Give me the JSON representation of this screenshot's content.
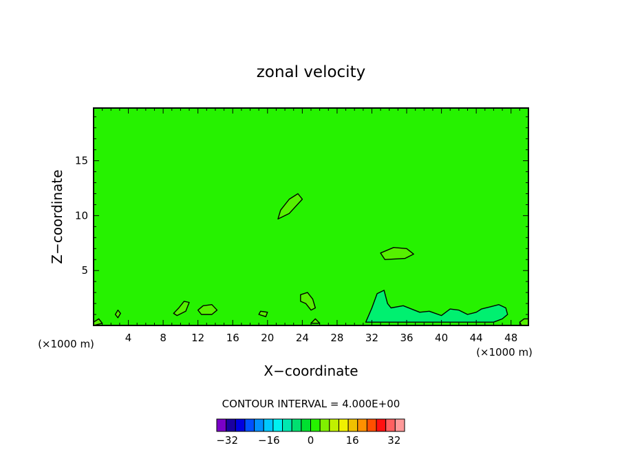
{
  "chart_data": {
    "type": "heatmap",
    "title": "zonal velocity",
    "xlabel": "X−coordinate",
    "ylabel": "Z−coordinate",
    "x_units_left": "(×1000 m)",
    "x_units_right": "(×1000 m)",
    "xlim": [
      0,
      50
    ],
    "ylim": [
      0,
      19.8
    ],
    "x_ticks": [
      4,
      8,
      12,
      16,
      20,
      24,
      28,
      32,
      36,
      40,
      44,
      48
    ],
    "y_ticks": [
      5,
      10,
      15
    ],
    "background_value": 0,
    "background_color": "#26f200",
    "contour_interval_text": "CONTOUR INTERVAL = 4.000E+00",
    "colorbar": {
      "ticks": [
        -32,
        -16,
        0,
        16,
        32
      ],
      "min": -36,
      "max": 36,
      "colors": [
        "#7a00c8",
        "#1a00a0",
        "#0000e0",
        "#0050ff",
        "#0090ff",
        "#00c8ff",
        "#00f0f0",
        "#00e8b0",
        "#00e070",
        "#00e030",
        "#26f200",
        "#80f000",
        "#c0f000",
        "#f0f000",
        "#f0c000",
        "#ff9000",
        "#ff5000",
        "#ff1010",
        "#ff6060",
        "#ff9a9a"
      ]
    },
    "features": [
      {
        "kind": "positive",
        "color": "#56f000",
        "points": [
          [
            21.5,
            10.5
          ],
          [
            22.5,
            11.5
          ],
          [
            23.5,
            12.0
          ],
          [
            24.0,
            11.5
          ],
          [
            22.5,
            10.2
          ],
          [
            21.2,
            9.7
          ]
        ]
      },
      {
        "kind": "positive",
        "color": "#56f000",
        "points": [
          [
            33.0,
            6.6
          ],
          [
            34.5,
            7.1
          ],
          [
            36.0,
            7.0
          ],
          [
            36.8,
            6.5
          ],
          [
            35.8,
            6.1
          ],
          [
            33.5,
            6.0
          ]
        ]
      },
      {
        "kind": "negative",
        "color": "#00f070",
        "points": [
          [
            31.3,
            0.3
          ],
          [
            32.0,
            1.6
          ],
          [
            32.6,
            2.9
          ],
          [
            33.4,
            3.2
          ],
          [
            33.8,
            2.0
          ],
          [
            34.2,
            1.6
          ],
          [
            35.6,
            1.8
          ],
          [
            37.5,
            1.2
          ],
          [
            38.6,
            1.3
          ],
          [
            40.0,
            0.9
          ],
          [
            41.0,
            1.5
          ],
          [
            42.0,
            1.4
          ],
          [
            43.0,
            1.0
          ],
          [
            44.0,
            1.2
          ],
          [
            44.6,
            1.5
          ],
          [
            45.6,
            1.7
          ],
          [
            46.6,
            1.9
          ],
          [
            47.4,
            1.6
          ],
          [
            47.6,
            1.0
          ],
          [
            47.0,
            0.6
          ],
          [
            46.0,
            0.3
          ]
        ]
      },
      {
        "kind": "positive",
        "color": "#56f000",
        "points": [
          [
            12.0,
            1.4
          ],
          [
            12.6,
            1.8
          ],
          [
            13.6,
            1.9
          ],
          [
            14.2,
            1.4
          ],
          [
            13.6,
            1.0
          ],
          [
            12.4,
            1.0
          ]
        ]
      },
      {
        "kind": "positive",
        "color": "#56f000",
        "points": [
          [
            9.2,
            1.1
          ],
          [
            9.8,
            1.6
          ],
          [
            10.4,
            2.2
          ],
          [
            11.0,
            2.1
          ],
          [
            10.6,
            1.3
          ],
          [
            9.6,
            0.9
          ]
        ]
      },
      {
        "kind": "positive",
        "color": "#56f000",
        "points": [
          [
            23.8,
            2.8
          ],
          [
            24.6,
            3.0
          ],
          [
            25.2,
            2.4
          ],
          [
            25.5,
            1.6
          ],
          [
            25.0,
            1.4
          ],
          [
            24.4,
            2.0
          ],
          [
            23.8,
            2.2
          ]
        ]
      },
      {
        "kind": "positive",
        "color": "#56f000",
        "points": [
          [
            19.0,
            1.0
          ],
          [
            19.2,
            1.3
          ],
          [
            20.0,
            1.2
          ],
          [
            19.8,
            0.8
          ]
        ]
      },
      {
        "kind": "positive",
        "color": "#56f000",
        "points": [
          [
            2.5,
            1.0
          ],
          [
            2.8,
            1.4
          ],
          [
            3.1,
            1.1
          ],
          [
            2.8,
            0.7
          ]
        ]
      },
      {
        "kind": "positive",
        "color": "#56f000",
        "points": [
          [
            25.0,
            0.2
          ],
          [
            25.5,
            0.6
          ],
          [
            26.0,
            0.2
          ]
        ]
      },
      {
        "kind": "positive",
        "color": "#56f000",
        "points": [
          [
            0.0,
            0.3
          ],
          [
            0.6,
            0.6
          ],
          [
            1.0,
            0.2
          ],
          [
            0.0,
            0.0
          ]
        ]
      },
      {
        "kind": "positive",
        "color": "#56f000",
        "points": [
          [
            49.0,
            0.3
          ],
          [
            49.5,
            0.6
          ],
          [
            50.0,
            0.6
          ],
          [
            50.0,
            0.0
          ],
          [
            49.2,
            0.0
          ]
        ]
      }
    ]
  }
}
